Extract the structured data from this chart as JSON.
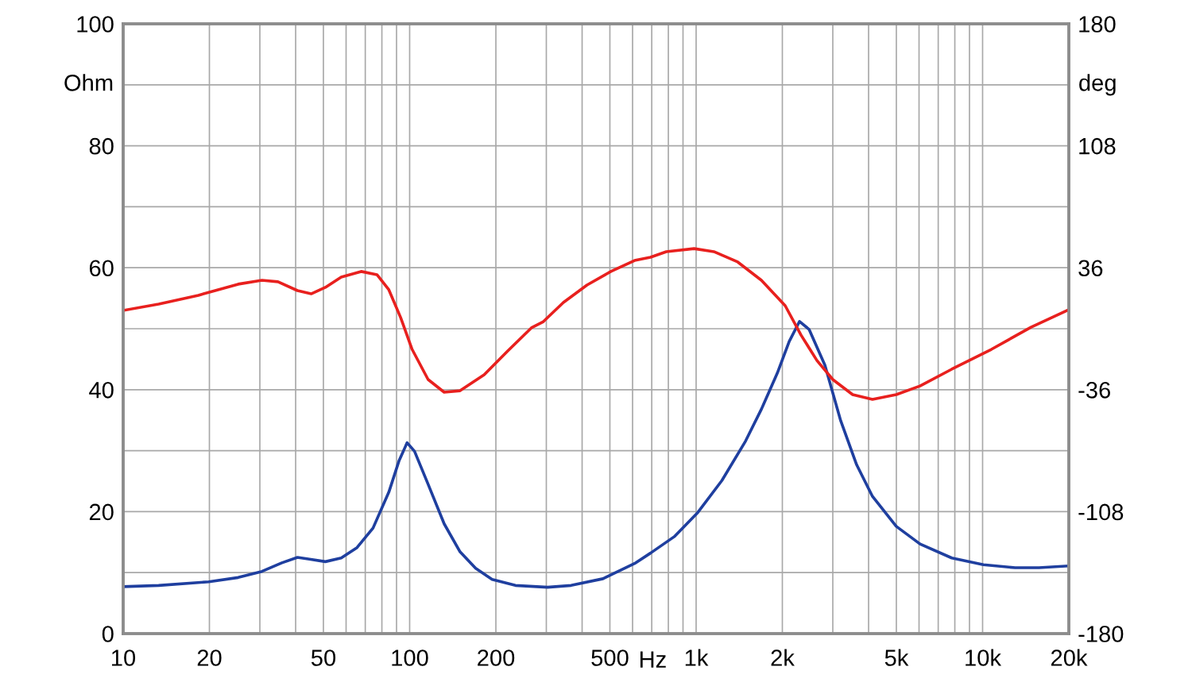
{
  "chart_data": {
    "type": "line",
    "xlabel": "Hz",
    "ylabel": "Ohm",
    "y2label": "deg",
    "log": "x",
    "grid": true,
    "marker": "none",
    "line_style": "solid",
    "xlim": [
      10,
      20000
    ],
    "xticks": [
      10,
      20,
      {
        "value": 30,
        "label": null
      },
      {
        "value": 40,
        "label": null
      },
      50,
      {
        "value": 60,
        "label": null
      },
      {
        "value": 70,
        "label": null
      },
      {
        "value": 80,
        "label": null
      },
      {
        "value": 90,
        "label": null
      },
      100,
      200,
      {
        "value": 300,
        "label": null
      },
      {
        "value": 400,
        "label": null
      },
      500,
      {
        "value": 600,
        "label": null
      },
      {
        "value": 700,
        "label": null
      },
      {
        "value": 800,
        "label": null
      },
      {
        "value": 900,
        "label": null
      },
      {
        "value": 1000,
        "label": "1k"
      },
      {
        "value": 2000,
        "label": "2k"
      },
      {
        "value": 3000,
        "label": null
      },
      {
        "value": 4000,
        "label": null
      },
      {
        "value": 5000,
        "label": "5k"
      },
      {
        "value": 6000,
        "label": null
      },
      {
        "value": 7000,
        "label": null
      },
      {
        "value": 8000,
        "label": null
      },
      {
        "value": 9000,
        "label": null
      },
      {
        "value": 10000,
        "label": "10k"
      },
      {
        "value": 20000,
        "label": "20k"
      }
    ],
    "ylim": [
      0,
      100
    ],
    "yticks": [
      0,
      {
        "value": 10,
        "label": null
      },
      20,
      {
        "value": 30,
        "label": null
      },
      40,
      {
        "value": 50,
        "label": null
      },
      60,
      {
        "value": 70,
        "label": null
      },
      80,
      {
        "value": 90,
        "label": null
      },
      100
    ],
    "y2lim": [
      -180,
      180
    ],
    "y2ticks": [
      -180,
      -108,
      -36,
      36,
      108,
      180
    ],
    "series": [
      {
        "color": "#1f3f9f",
        "x": [
          10,
          13.3,
          19.9,
          25.2,
          30.5,
          35.8,
          40.6,
          44.7,
          50.8,
          57.7,
          65.5,
          74.5,
          84.6,
          91.9,
          98,
          104,
          116,
          132,
          150,
          170,
          194,
          234,
          303,
          366,
          473,
          610,
          693,
          839,
          1015,
          1230,
          1489,
          1690,
          1920,
          2113,
          2296,
          2479,
          2816,
          3197,
          3633,
          4127,
          4995,
          6048,
          7805,
          10070,
          12990,
          15730,
          20000
        ],
        "values": [
          7.7,
          7.9,
          8.5,
          9.2,
          10.2,
          11.6,
          12.5,
          12.2,
          11.8,
          12.4,
          14.1,
          17.3,
          23.2,
          28.4,
          31.3,
          29.9,
          24.5,
          18.0,
          13.4,
          10.7,
          8.9,
          7.9,
          7.6,
          7.9,
          9.0,
          11.5,
          13.2,
          15.9,
          19.9,
          25.1,
          31.6,
          36.8,
          42.7,
          47.9,
          51.2,
          49.9,
          44.0,
          34.9,
          27.7,
          22.5,
          17.6,
          14.7,
          12.4,
          11.3,
          10.8,
          10.8,
          11.1
        ]
      },
      {
        "color": "#e8201e",
        "axis": "y2",
        "x": [
          10,
          13.3,
          18.3,
          25.2,
          30.5,
          34.7,
          40.6,
          45.3,
          50.8,
          57.7,
          67.7,
          76.9,
          84.6,
          93.0,
          102,
          116,
          132,
          150,
          182,
          220,
          266,
          293,
          344,
          416,
          504,
          610,
          693,
          787,
          984,
          1153,
          1397,
          1690,
          2046,
          2325,
          2642,
          3000,
          3518,
          4127,
          4995,
          6048,
          7805,
          10730,
          14760,
          20000
        ],
        "values": [
          10.8,
          14.5,
          19.7,
          26.3,
          28.6,
          27.7,
          22.5,
          20.6,
          24.4,
          30.5,
          33.8,
          31.9,
          23.0,
          6.6,
          -12.2,
          -30,
          -37.5,
          -36.6,
          -27.2,
          -13.1,
          0.5,
          4.2,
          15.5,
          25.8,
          33.8,
          40.3,
          42.2,
          45.5,
          47.3,
          45.5,
          39.4,
          28.6,
          13.6,
          -3.8,
          -18.8,
          -30,
          -38.9,
          -41.7,
          -38.9,
          -33.8,
          -23.9,
          -12.2,
          0.9,
          11.3
        ]
      }
    ]
  }
}
